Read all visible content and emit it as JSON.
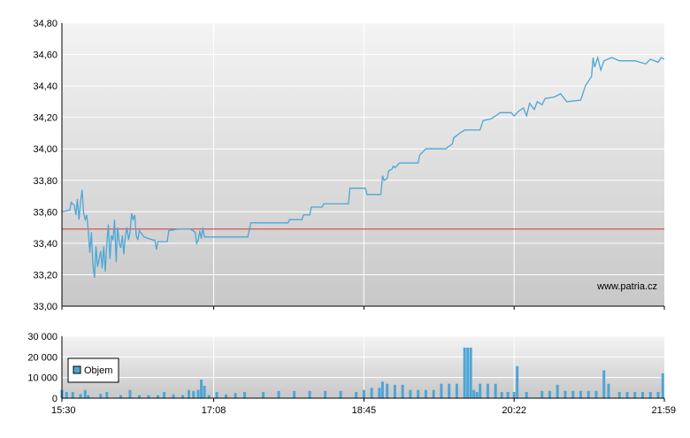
{
  "watermark": "www.patria.cz",
  "colors": {
    "price_line": "#4da6d6",
    "reference_line": "#cc3333",
    "volume_bar": "#4da6d6",
    "grid": "#ffffff",
    "panel_top": "#f4f4f4",
    "panel_bottom": "#c8c8c8",
    "axis": "#000000"
  },
  "chart_data": [
    {
      "type": "line",
      "x_ticks": [
        "15:30",
        "17:08",
        "18:45",
        "20:22",
        "21:59"
      ],
      "ylim": [
        33.0,
        34.8
      ],
      "y_ticks": [
        "33,00",
        "33,20",
        "33,40",
        "33,60",
        "33,80",
        "34,00",
        "34,20",
        "34,40",
        "34,60",
        "34,80"
      ],
      "y_tick_values": [
        33.0,
        33.2,
        33.4,
        33.6,
        33.8,
        34.0,
        34.2,
        34.4,
        34.6,
        34.8
      ],
      "reference_value": 33.49,
      "series": [
        {
          "points": [
            [
              "15:30",
              33.6
            ],
            [
              "15:35",
              33.61
            ],
            [
              "15:36",
              33.66
            ],
            [
              "15:38",
              33.64
            ],
            [
              "15:39",
              33.58
            ],
            [
              "15:40",
              33.68
            ],
            [
              "15:41",
              33.55
            ],
            [
              "15:42",
              33.66
            ],
            [
              "15:43",
              33.74
            ],
            [
              "15:44",
              33.59
            ],
            [
              "15:45",
              33.55
            ],
            [
              "15:46",
              33.58
            ],
            [
              "15:47",
              33.48
            ],
            [
              "15:48",
              33.34
            ],
            [
              "15:49",
              33.47
            ],
            [
              "15:50",
              33.27
            ],
            [
              "15:51",
              33.18
            ],
            [
              "15:52",
              33.38
            ],
            [
              "15:53",
              33.25
            ],
            [
              "15:54",
              33.3
            ],
            [
              "15:55",
              33.35
            ],
            [
              "15:56",
              33.24
            ],
            [
              "15:57",
              33.38
            ],
            [
              "15:58",
              33.22
            ],
            [
              "15:59",
              33.4
            ],
            [
              "16:00",
              33.52
            ],
            [
              "16:01",
              33.3
            ],
            [
              "16:02",
              33.45
            ],
            [
              "16:03",
              33.42
            ],
            [
              "16:04",
              33.55
            ],
            [
              "16:05",
              33.28
            ],
            [
              "16:06",
              33.5
            ],
            [
              "16:07",
              33.4
            ],
            [
              "16:08",
              33.37
            ],
            [
              "16:09",
              33.45
            ],
            [
              "16:10",
              33.33
            ],
            [
              "16:11",
              33.45
            ],
            [
              "16:12",
              33.5
            ],
            [
              "16:13",
              33.42
            ],
            [
              "16:14",
              33.47
            ],
            [
              "16:15",
              33.59
            ],
            [
              "16:16",
              33.55
            ],
            [
              "16:17",
              33.58
            ],
            [
              "16:18",
              33.45
            ],
            [
              "16:19",
              33.42
            ],
            [
              "16:20",
              33.48
            ],
            [
              "16:23",
              33.44
            ],
            [
              "16:26",
              33.43
            ],
            [
              "16:29",
              33.42
            ],
            [
              "16:30",
              33.42
            ],
            [
              "16:31",
              33.36
            ],
            [
              "16:32",
              33.41
            ],
            [
              "16:38",
              33.41
            ],
            [
              "16:39",
              33.48
            ],
            [
              "16:45",
              33.49
            ],
            [
              "16:53",
              33.49
            ],
            [
              "16:56",
              33.47
            ],
            [
              "16:57",
              33.4
            ],
            [
              "16:58",
              33.42
            ],
            [
              "16:59",
              33.48
            ],
            [
              "17:00",
              33.43
            ],
            [
              "17:01",
              33.5
            ],
            [
              "17:02",
              33.44
            ],
            [
              "17:30",
              33.44
            ],
            [
              "17:32",
              33.53
            ],
            [
              "17:56",
              33.53
            ],
            [
              "17:57",
              33.55
            ],
            [
              "18:05",
              33.55
            ],
            [
              "18:06",
              33.58
            ],
            [
              "18:10",
              33.58
            ],
            [
              "18:11",
              33.63
            ],
            [
              "18:18",
              33.63
            ],
            [
              "18:19",
              33.65
            ],
            [
              "18:35",
              33.65
            ],
            [
              "18:36",
              33.75
            ],
            [
              "18:46",
              33.75
            ],
            [
              "18:47",
              33.71
            ],
            [
              "18:56",
              33.71
            ],
            [
              "18:57",
              33.83
            ],
            [
              "18:58",
              33.8
            ],
            [
              "19:00",
              33.81
            ],
            [
              "19:01",
              33.86
            ],
            [
              "19:03",
              33.87
            ],
            [
              "19:04",
              33.89
            ],
            [
              "19:05",
              33.88
            ],
            [
              "19:07",
              33.9
            ],
            [
              "19:08",
              33.91
            ],
            [
              "19:20",
              33.91
            ],
            [
              "19:21",
              33.96
            ],
            [
              "19:25",
              34.0
            ],
            [
              "19:38",
              34.0
            ],
            [
              "19:39",
              34.01
            ],
            [
              "19:42",
              34.03
            ],
            [
              "19:43",
              34.07
            ],
            [
              "19:47",
              34.1
            ],
            [
              "19:50",
              34.12
            ],
            [
              "20:00",
              34.12
            ],
            [
              "20:02",
              34.18
            ],
            [
              "20:07",
              34.19
            ],
            [
              "20:10",
              34.21
            ],
            [
              "20:13",
              34.23
            ],
            [
              "20:20",
              34.23
            ],
            [
              "20:22",
              34.21
            ],
            [
              "20:25",
              34.24
            ],
            [
              "20:28",
              34.26
            ],
            [
              "20:30",
              34.21
            ],
            [
              "20:32",
              34.29
            ],
            [
              "20:35",
              34.25
            ],
            [
              "20:37",
              34.3
            ],
            [
              "20:40",
              34.28
            ],
            [
              "20:42",
              34.32
            ],
            [
              "20:48",
              34.33
            ],
            [
              "20:52",
              34.35
            ],
            [
              "20:56",
              34.3
            ],
            [
              "21:05",
              34.31
            ],
            [
              "21:08",
              34.4
            ],
            [
              "21:10",
              34.43
            ],
            [
              "21:12",
              34.46
            ],
            [
              "21:13",
              34.58
            ],
            [
              "21:14",
              34.52
            ],
            [
              "21:16",
              34.58
            ],
            [
              "21:18",
              34.5
            ],
            [
              "21:20",
              34.56
            ],
            [
              "21:25",
              34.58
            ],
            [
              "21:30",
              34.56
            ],
            [
              "21:40",
              34.56
            ],
            [
              "21:47",
              34.54
            ],
            [
              "21:50",
              34.57
            ],
            [
              "21:55",
              34.55
            ],
            [
              "21:57",
              34.58
            ],
            [
              "21:59",
              34.57
            ]
          ]
        }
      ]
    },
    {
      "type": "bar",
      "x_ticks": [
        "15:30",
        "17:08",
        "18:45",
        "20:22",
        "21:59"
      ],
      "ylim": [
        0,
        30000
      ],
      "y_ticks": [
        "0",
        "10 000",
        "20 000",
        "30 000"
      ],
      "y_tick_values": [
        0,
        10000,
        20000,
        30000
      ],
      "legend": "Objem",
      "legend_position": "left",
      "series": [
        {
          "points": [
            [
              "15:30",
              4000
            ],
            [
              "15:33",
              3000
            ],
            [
              "15:37",
              3000
            ],
            [
              "15:42",
              2000
            ],
            [
              "15:45",
              4000
            ],
            [
              "15:47",
              1500
            ],
            [
              "15:55",
              2000
            ],
            [
              "15:59",
              3000
            ],
            [
              "16:08",
              1500
            ],
            [
              "16:14",
              4000
            ],
            [
              "16:20",
              1500
            ],
            [
              "16:26",
              1500
            ],
            [
              "16:32",
              1500
            ],
            [
              "16:36",
              3000
            ],
            [
              "16:42",
              1800
            ],
            [
              "16:48",
              1500
            ],
            [
              "16:52",
              4000
            ],
            [
              "16:55",
              3500
            ],
            [
              "16:58",
              4000
            ],
            [
              "17:00",
              9000
            ],
            [
              "17:02",
              6000
            ],
            [
              "17:05",
              1500
            ],
            [
              "17:10",
              3000
            ],
            [
              "17:16",
              1800
            ],
            [
              "17:22",
              2500
            ],
            [
              "17:28",
              3000
            ],
            [
              "17:40",
              3000
            ],
            [
              "17:50",
              3500
            ],
            [
              "18:00",
              3500
            ],
            [
              "18:10",
              3500
            ],
            [
              "18:20",
              3500
            ],
            [
              "18:30",
              3500
            ],
            [
              "18:40",
              3000
            ],
            [
              "18:45",
              4000
            ],
            [
              "18:50",
              5000
            ],
            [
              "18:55",
              5000
            ],
            [
              "18:57",
              8000
            ],
            [
              "19:00",
              7000
            ],
            [
              "19:05",
              6500
            ],
            [
              "19:10",
              6500
            ],
            [
              "19:15",
              4000
            ],
            [
              "19:20",
              4000
            ],
            [
              "19:25",
              4000
            ],
            [
              "19:30",
              4000
            ],
            [
              "19:35",
              7000
            ],
            [
              "19:40",
              7000
            ],
            [
              "19:45",
              7000
            ],
            [
              "19:50",
              24500
            ],
            [
              "19:52",
              24500
            ],
            [
              "19:54",
              24500
            ],
            [
              "19:56",
              4000
            ],
            [
              "19:58",
              3000
            ],
            [
              "20:00",
              7000
            ],
            [
              "20:05",
              7000
            ],
            [
              "20:10",
              7000
            ],
            [
              "20:14",
              3000
            ],
            [
              "20:18",
              3000
            ],
            [
              "20:22",
              3000
            ],
            [
              "20:24",
              15500
            ],
            [
              "20:30",
              3000
            ],
            [
              "20:40",
              3500
            ],
            [
              "20:45",
              3500
            ],
            [
              "20:50",
              6500
            ],
            [
              "20:55",
              3500
            ],
            [
              "21:00",
              3500
            ],
            [
              "21:05",
              3500
            ],
            [
              "21:10",
              3500
            ],
            [
              "21:15",
              3500
            ],
            [
              "21:20",
              13500
            ],
            [
              "21:23",
              7000
            ],
            [
              "21:30",
              3000
            ],
            [
              "21:35",
              3000
            ],
            [
              "21:40",
              3000
            ],
            [
              "21:45",
              3000
            ],
            [
              "21:50",
              3000
            ],
            [
              "21:55",
              3000
            ],
            [
              "21:58",
              12000
            ]
          ]
        }
      ]
    }
  ]
}
